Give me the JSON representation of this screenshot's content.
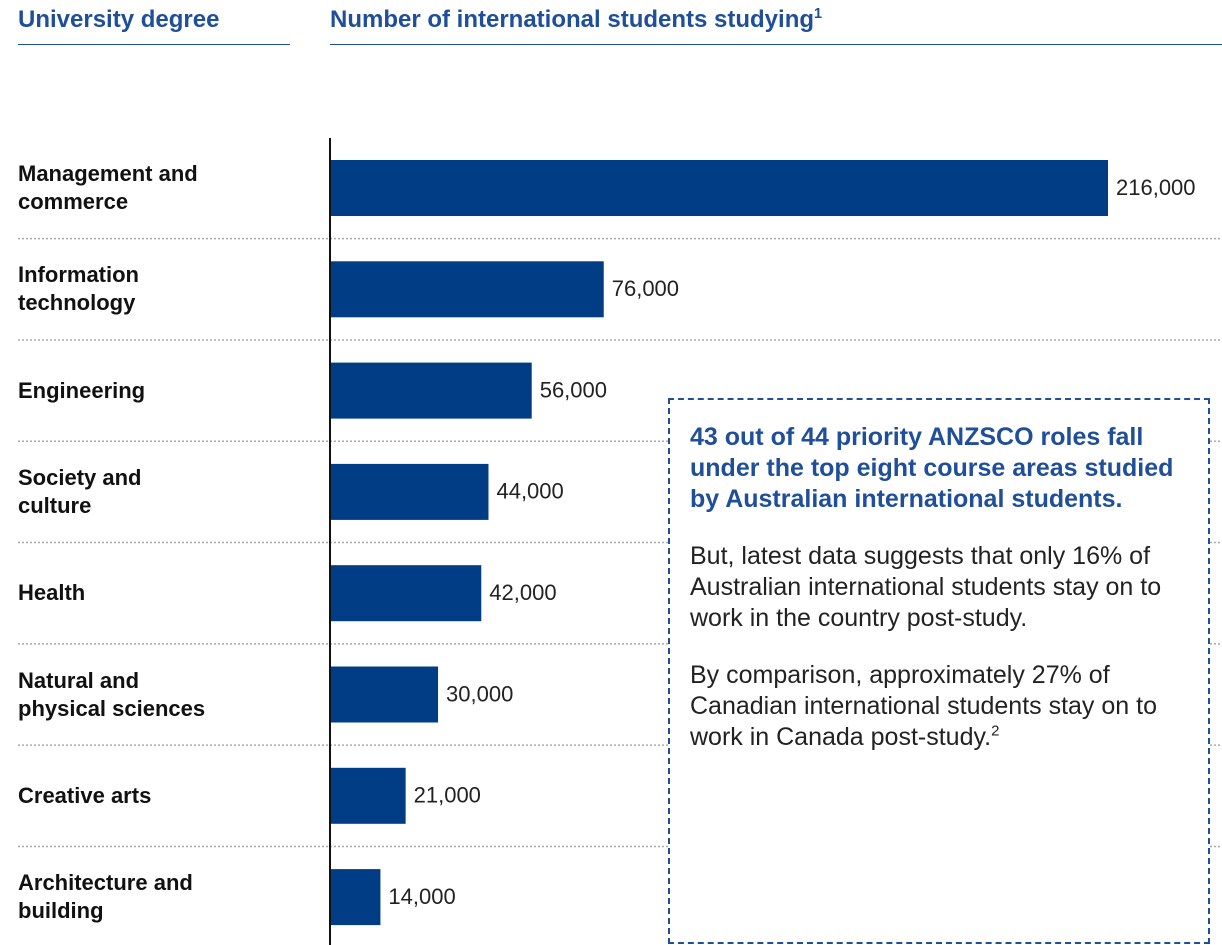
{
  "header": {
    "left": "University degree",
    "right": "Number of international students studying",
    "right_footnote": "1"
  },
  "chart_data": {
    "type": "bar",
    "orientation": "horizontal",
    "categories": [
      "Management and\ncommerce",
      "Information\ntechnology",
      "Engineering",
      "Society and\nculture",
      "Health",
      "Natural and\nphysical sciences",
      "Creative arts",
      "Architecture and\nbuilding"
    ],
    "values": [
      216000,
      76000,
      56000,
      44000,
      42000,
      30000,
      21000,
      14000
    ],
    "value_labels": [
      "216,000",
      "76,000",
      "56,000",
      "44,000",
      "42,000",
      "30,000",
      "21,000",
      "14,000"
    ],
    "color": "#003d84",
    "xlim": [
      0,
      216000
    ]
  },
  "callout": {
    "heading": "43 out of 44 priority ANZSCO roles fall under the top eight course areas studied by Australian international students.",
    "paragraphs": [
      "But, latest data suggests that only 16% of Australian international students stay on to work in the country post-study.",
      "By comparison, approximately 27% of Canadian international students stay on to work in Canada post-study."
    ],
    "footnote": "2"
  }
}
